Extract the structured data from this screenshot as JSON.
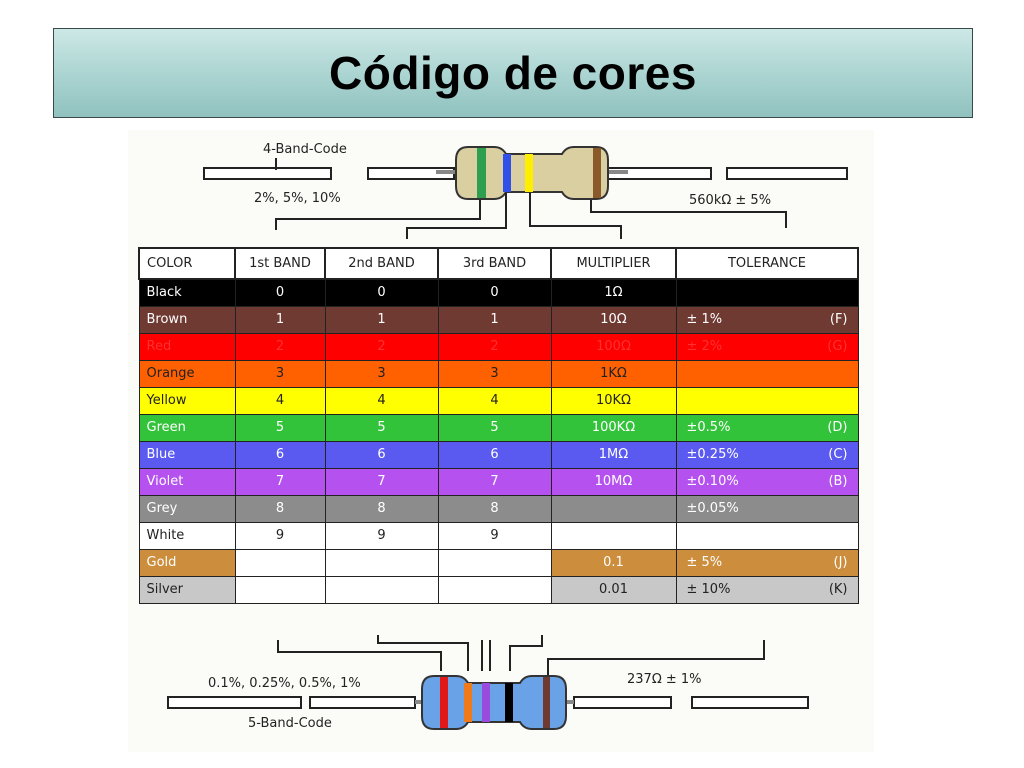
{
  "slide": {
    "title": "Código de cores"
  },
  "diagram": {
    "four_band": {
      "code_label": "4-Band-Code",
      "tolerance_options": "2%, 5%, 10%",
      "example_value": "560kΩ ± 5%"
    },
    "five_band": {
      "code_label": "5-Band-Code",
      "tolerance_options": "0.1%, 0.25%, 0.5%, 1%",
      "example_value": "237Ω ± 1%"
    }
  },
  "table": {
    "headers": {
      "color": "COLOR",
      "band1": "1st BAND",
      "band2": "2nd BAND",
      "band3": "3rd BAND",
      "multiplier": "MULTIPLIER",
      "tolerance": "TOLERANCE"
    },
    "rows": [
      {
        "name": "Black",
        "bg": "#000000",
        "fg": "#ffffff",
        "b1": "0",
        "b2": "0",
        "b3": "0",
        "mult": "1Ω",
        "tol": "",
        "tol_code": ""
      },
      {
        "name": "Brown",
        "bg": "#6e3a32",
        "fg": "#ffffff",
        "b1": "1",
        "b2": "1",
        "b3": "1",
        "mult": "10Ω",
        "tol": "±  1%",
        "tol_code": "(F)"
      },
      {
        "name": "Red",
        "bg": "#ff0000",
        "fg": "#ff3030",
        "b1": "2",
        "b2": "2",
        "b3": "2",
        "mult": "100Ω",
        "tol": "±  2%",
        "tol_code": "(G)"
      },
      {
        "name": "Orange",
        "bg": "#ff6000",
        "fg": "#222222",
        "b1": "3",
        "b2": "3",
        "b3": "3",
        "mult": "1KΩ",
        "tol": "",
        "tol_code": ""
      },
      {
        "name": "Yellow",
        "bg": "#ffff00",
        "fg": "#222222",
        "b1": "4",
        "b2": "4",
        "b3": "4",
        "mult": "10KΩ",
        "tol": "",
        "tol_code": ""
      },
      {
        "name": "Green",
        "bg": "#33c33a",
        "fg": "#ffffff",
        "b1": "5",
        "b2": "5",
        "b3": "5",
        "mult": "100KΩ",
        "tol": "±0.5%",
        "tol_code": "(D)"
      },
      {
        "name": "Blue",
        "bg": "#5a5af0",
        "fg": "#ffffff",
        "b1": "6",
        "b2": "6",
        "b3": "6",
        "mult": "1MΩ",
        "tol": "±0.25%",
        "tol_code": "(C)"
      },
      {
        "name": "Violet",
        "bg": "#b552ef",
        "fg": "#ffffff",
        "b1": "7",
        "b2": "7",
        "b3": "7",
        "mult": "10MΩ",
        "tol": "±0.10%",
        "tol_code": "(B)"
      },
      {
        "name": "Grey",
        "bg": "#8c8c8c",
        "fg": "#ffffff",
        "b1": "8",
        "b2": "8",
        "b3": "8",
        "mult": "",
        "tol": "±0.05%",
        "tol_code": ""
      },
      {
        "name": "White",
        "bg": "#ffffff",
        "fg": "#222222",
        "b1": "9",
        "b2": "9",
        "b3": "9",
        "mult": "",
        "tol": "",
        "tol_code": ""
      },
      {
        "name": "Gold",
        "bg": "#cc8e3c",
        "fg": "#ffffff",
        "b1": "",
        "b2": "",
        "b3": "",
        "mult": "0.1",
        "tol": "±  5%",
        "tol_code": "(J)"
      },
      {
        "name": "Silver",
        "bg": "#c8c8c8",
        "fg": "#222222",
        "b1": "",
        "b2": "",
        "b3": "",
        "mult": "0.01",
        "tol": "±  10%",
        "tol_code": "(K)"
      }
    ]
  }
}
